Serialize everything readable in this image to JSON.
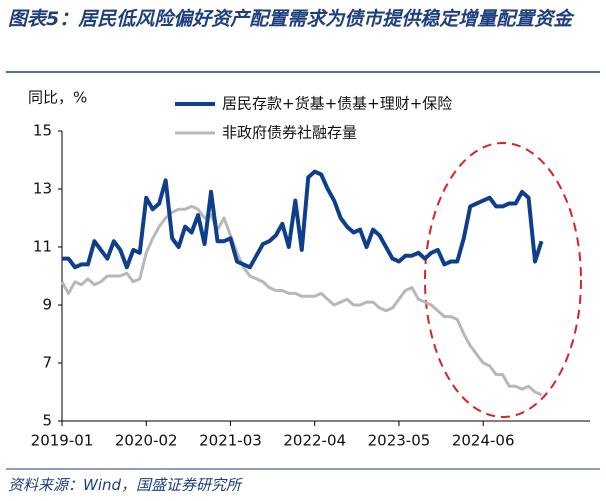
{
  "chart_data": {
    "type": "line",
    "title": "图表5：居民低风险偏好资产配置需求为债市提供稳定增量配置资金",
    "y_label": "同比，%",
    "source": "资料来源：Wind，国盛证券研究所",
    "categories": [
      "2019-01",
      null,
      null,
      null,
      null,
      null,
      null,
      null,
      null,
      null,
      null,
      null,
      null,
      "2020-02",
      null,
      null,
      null,
      null,
      null,
      null,
      null,
      null,
      null,
      null,
      null,
      null,
      "2021-03",
      null,
      null,
      null,
      null,
      null,
      null,
      null,
      null,
      null,
      null,
      null,
      null,
      "2022-04",
      null,
      null,
      null,
      null,
      null,
      null,
      null,
      null,
      null,
      null,
      null,
      null,
      "2023-05",
      null,
      null,
      null,
      null,
      null,
      null,
      null,
      null,
      null,
      null,
      null,
      null,
      "2024-06",
      null,
      null,
      null,
      null,
      null,
      null,
      null,
      null,
      null
    ],
    "series": [
      {
        "name": "居民存款+货基+债基+理财+保险",
        "color": "#0e3f8f",
        "width": 4,
        "values": [
          10.6,
          10.6,
          10.3,
          10.4,
          10.4,
          11.2,
          10.9,
          10.6,
          11.2,
          10.9,
          10.3,
          10.9,
          10.8,
          12.7,
          12.3,
          12.5,
          13.3,
          11.3,
          11.0,
          11.7,
          11.5,
          12.1,
          11.1,
          12.9,
          11.2,
          11.2,
          11.3,
          10.5,
          10.4,
          10.3,
          10.7,
          11.1,
          11.2,
          11.4,
          11.8,
          11.0,
          12.6,
          10.9,
          13.4,
          13.6,
          13.5,
          13.0,
          12.6,
          12.0,
          11.7,
          11.5,
          11.6,
          11.0,
          11.6,
          11.4,
          11.0,
          10.6,
          10.5,
          10.7,
          10.7,
          10.8,
          10.6,
          10.8,
          10.9,
          10.4,
          10.5,
          10.5,
          11.3,
          12.4,
          12.5,
          12.6,
          12.7,
          12.4,
          12.4,
          12.5,
          12.5,
          12.9,
          12.7,
          10.5,
          11.2
        ]
      },
      {
        "name": "非政府债券社融存量",
        "color": "#b8b8b8",
        "width": 3,
        "values": [
          9.8,
          9.4,
          9.8,
          9.7,
          9.9,
          9.7,
          9.8,
          10.0,
          10.0,
          10.0,
          10.1,
          9.8,
          9.9,
          10.8,
          11.3,
          11.7,
          12.0,
          12.2,
          12.3,
          12.3,
          12.4,
          12.3,
          12.0,
          12.1,
          11.6,
          12.0,
          11.4,
          10.8,
          10.3,
          10.0,
          9.9,
          9.8,
          9.6,
          9.5,
          9.5,
          9.4,
          9.4,
          9.3,
          9.3,
          9.3,
          9.4,
          9.2,
          9.0,
          9.1,
          9.2,
          9.0,
          9.0,
          9.1,
          9.1,
          8.9,
          8.8,
          8.9,
          9.2,
          9.5,
          9.6,
          9.2,
          9.1,
          9.0,
          8.8,
          8.6,
          8.6,
          8.5,
          8.0,
          7.6,
          7.3,
          7.0,
          6.9,
          6.6,
          6.6,
          6.2,
          6.2,
          6.1,
          6.2,
          6.0,
          5.9
        ]
      }
    ],
    "ylim": [
      5,
      15
    ],
    "yticks": [
      5,
      7,
      9,
      11,
      13,
      15
    ]
  }
}
